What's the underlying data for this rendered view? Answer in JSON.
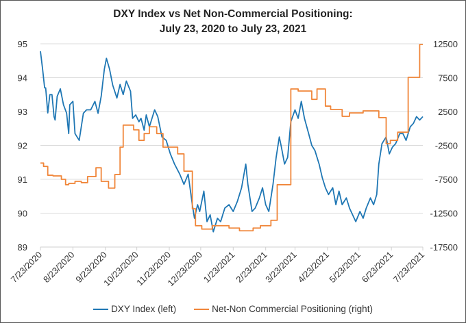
{
  "chart_data": {
    "type": "line",
    "title": "DXY Index vs Net Non-Commercial Positioning:",
    "subtitle": "July 23, 2020 to July 23, 2021",
    "x_unit": "days since 7/23/2020",
    "x_ticks": [
      "7/23/2020",
      "8/23/2020",
      "9/23/2020",
      "10/23/2020",
      "11/23/2020",
      "12/23/2020",
      "1/23/2021",
      "2/23/2021",
      "3/23/2021",
      "4/23/2021",
      "5/23/2021",
      "6/23/2021",
      "7/23/2021"
    ],
    "x_tick_days": [
      0,
      31,
      62,
      92,
      123,
      153,
      184,
      215,
      243,
      274,
      304,
      335,
      365
    ],
    "y_left": {
      "ylim": [
        89,
        95
      ],
      "ticks": [
        "89",
        "90",
        "91",
        "92",
        "93",
        "94",
        "95"
      ]
    },
    "y_right": {
      "ylim": [
        -17500,
        12500
      ],
      "ticks": [
        "-17500",
        "-12500",
        "-7500",
        "-2500",
        "2500",
        "7500",
        "12500"
      ]
    },
    "grid": true,
    "legend_position": "bottom",
    "colors": {
      "dxy": "#1f77b4",
      "positioning": "#f0863a"
    },
    "series": [
      {
        "name": "DXY Index (left)",
        "axis": "left",
        "points": [
          [
            0,
            94.78
          ],
          [
            2,
            94.27
          ],
          [
            4,
            93.7
          ],
          [
            5,
            93.7
          ],
          [
            7,
            92.96
          ],
          [
            9,
            93.5
          ],
          [
            11,
            93.5
          ],
          [
            13,
            92.85
          ],
          [
            14,
            92.75
          ],
          [
            16,
            93.45
          ],
          [
            19,
            93.67
          ],
          [
            22,
            93.2
          ],
          [
            25,
            92.95
          ],
          [
            27,
            92.35
          ],
          [
            28,
            93.2
          ],
          [
            31,
            93.3
          ],
          [
            33,
            92.35
          ],
          [
            37,
            92.15
          ],
          [
            39,
            92.55
          ],
          [
            41,
            92.95
          ],
          [
            44,
            93.05
          ],
          [
            48,
            93.05
          ],
          [
            52,
            93.3
          ],
          [
            55,
            92.95
          ],
          [
            58,
            93.45
          ],
          [
            61,
            94.25
          ],
          [
            63,
            94.57
          ],
          [
            66,
            94.25
          ],
          [
            69,
            93.78
          ],
          [
            73,
            93.4
          ],
          [
            76,
            93.8
          ],
          [
            79,
            93.5
          ],
          [
            82,
            93.9
          ],
          [
            86,
            93.6
          ],
          [
            88,
            92.8
          ],
          [
            91,
            92.9
          ],
          [
            94,
            92.7
          ],
          [
            96,
            92.8
          ],
          [
            99,
            92.45
          ],
          [
            101,
            92.9
          ],
          [
            104,
            92.55
          ],
          [
            109,
            93.05
          ],
          [
            112,
            92.85
          ],
          [
            116,
            92.25
          ],
          [
            120,
            92.15
          ],
          [
            124,
            91.75
          ],
          [
            128,
            91.45
          ],
          [
            133,
            91.15
          ],
          [
            137,
            90.85
          ],
          [
            141,
            91.15
          ],
          [
            145,
            90.25
          ],
          [
            147,
            89.85
          ],
          [
            150,
            90.25
          ],
          [
            152,
            90.05
          ],
          [
            156,
            90.65
          ],
          [
            159,
            89.75
          ],
          [
            162,
            89.95
          ],
          [
            165,
            89.45
          ],
          [
            169,
            89.85
          ],
          [
            172,
            89.75
          ],
          [
            176,
            90.15
          ],
          [
            180,
            90.25
          ],
          [
            184,
            90.05
          ],
          [
            188,
            90.35
          ],
          [
            192,
            90.75
          ],
          [
            196,
            91.45
          ],
          [
            198,
            90.85
          ],
          [
            202,
            90.05
          ],
          [
            205,
            90.15
          ],
          [
            209,
            90.45
          ],
          [
            212,
            90.75
          ],
          [
            215,
            90.25
          ],
          [
            218,
            90.05
          ],
          [
            222,
            90.85
          ],
          [
            225,
            91.65
          ],
          [
            228,
            92.25
          ],
          [
            230,
            91.95
          ],
          [
            233,
            91.45
          ],
          [
            236,
            91.65
          ],
          [
            239,
            92.7
          ],
          [
            243,
            93.05
          ],
          [
            246,
            92.8
          ],
          [
            249,
            93.3
          ],
          [
            252,
            92.8
          ],
          [
            256,
            92.35
          ],
          [
            259,
            92.0
          ],
          [
            262,
            91.85
          ],
          [
            266,
            91.45
          ],
          [
            269,
            91.05
          ],
          [
            272,
            90.75
          ],
          [
            275,
            90.55
          ],
          [
            279,
            90.75
          ],
          [
            282,
            90.25
          ],
          [
            285,
            90.65
          ],
          [
            288,
            90.25
          ],
          [
            292,
            90.45
          ],
          [
            295,
            90.15
          ],
          [
            298,
            89.95
          ],
          [
            301,
            89.75
          ],
          [
            305,
            90.05
          ],
          [
            308,
            89.85
          ],
          [
            311,
            90.15
          ],
          [
            315,
            90.45
          ],
          [
            318,
            90.25
          ],
          [
            321,
            90.55
          ],
          [
            323,
            91.45
          ],
          [
            326,
            92.05
          ],
          [
            330,
            92.25
          ],
          [
            333,
            91.75
          ],
          [
            336,
            91.95
          ],
          [
            339,
            92.05
          ],
          [
            343,
            92.35
          ],
          [
            346,
            92.35
          ],
          [
            349,
            92.15
          ],
          [
            353,
            92.55
          ],
          [
            356,
            92.65
          ],
          [
            359,
            92.85
          ],
          [
            362,
            92.75
          ],
          [
            365,
            92.85
          ]
        ]
      },
      {
        "name": "Net-Non Commercial Positioning (right)",
        "axis": "right",
        "step": true,
        "points": [
          [
            0,
            -5100
          ],
          [
            3,
            -5600
          ],
          [
            7,
            -6900
          ],
          [
            12,
            -7000
          ],
          [
            20,
            -7500
          ],
          [
            24,
            -8300
          ],
          [
            27,
            -8100
          ],
          [
            33,
            -7800
          ],
          [
            39,
            -8000
          ],
          [
            45,
            -7100
          ],
          [
            53,
            -5800
          ],
          [
            58,
            -7800
          ],
          [
            65,
            -8800
          ],
          [
            71,
            -6800
          ],
          [
            76,
            -2750
          ],
          [
            79,
            500
          ],
          [
            89,
            -200
          ],
          [
            94,
            -1750
          ],
          [
            99,
            -750
          ],
          [
            104,
            250
          ],
          [
            111,
            -750
          ],
          [
            117,
            -2750
          ],
          [
            131,
            -3750
          ],
          [
            137,
            -6300
          ],
          [
            145,
            -11850
          ],
          [
            148,
            -14350
          ],
          [
            154,
            -14850
          ],
          [
            164,
            -14350
          ],
          [
            180,
            -14700
          ],
          [
            190,
            -15100
          ],
          [
            203,
            -14700
          ],
          [
            210,
            -14350
          ],
          [
            220,
            -13550
          ],
          [
            226,
            -8300
          ],
          [
            239,
            5830
          ],
          [
            246,
            5530
          ],
          [
            259,
            4300
          ],
          [
            264,
            5830
          ],
          [
            272,
            3300
          ],
          [
            277,
            2800
          ],
          [
            288,
            1800
          ],
          [
            295,
            2300
          ],
          [
            308,
            2600
          ],
          [
            323,
            1600
          ],
          [
            330,
            -2250
          ],
          [
            334,
            -1750
          ],
          [
            341,
            -550
          ],
          [
            351,
            7550
          ],
          [
            362,
            12400
          ],
          [
            365,
            12400
          ]
        ]
      }
    ]
  }
}
